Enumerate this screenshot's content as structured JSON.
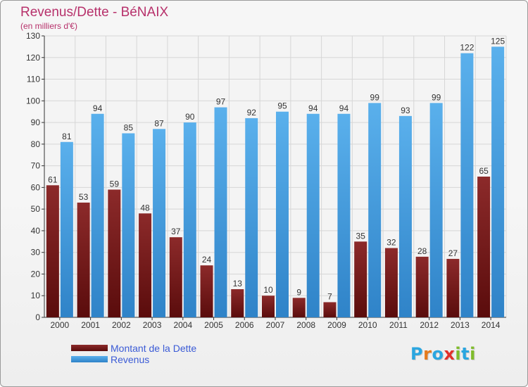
{
  "header": {
    "title": "Revenus/Dette - BéNAIX",
    "subtitle": "(en milliers d'€)"
  },
  "legend": {
    "dette_label": "Montant de la Dette",
    "revenus_label": "Revenus"
  },
  "logo": {
    "text": "Proxiti",
    "colors": [
      "#2aa6e0",
      "#e57a1c",
      "#2aa6e0",
      "#e2302a",
      "#7fbc2a",
      "#2aa6e0",
      "#7fbc2a"
    ]
  },
  "colors": {
    "dette": "#7a1a1a",
    "revenus": "#4aa3e6",
    "title": "#b7316b",
    "legend_text": "#3b5bd6",
    "grid": "#d6d6d6"
  },
  "chart_data": {
    "type": "bar",
    "title": "Revenus/Dette - BéNAIX",
    "subtitle": "(en milliers d'€)",
    "categories": [
      "2000",
      "2001",
      "2002",
      "2003",
      "2004",
      "2005",
      "2006",
      "2007",
      "2008",
      "2009",
      "2010",
      "2011",
      "2012",
      "2013",
      "2014"
    ],
    "series": [
      {
        "name": "Montant de la Dette",
        "values": [
          61,
          53,
          59,
          48,
          37,
          24,
          13,
          10,
          9,
          7,
          35,
          32,
          28,
          27,
          65
        ]
      },
      {
        "name": "Revenus",
        "values": [
          81,
          94,
          85,
          87,
          90,
          97,
          92,
          95,
          94,
          94,
          99,
          93,
          99,
          122,
          125
        ]
      }
    ],
    "ylim": [
      0,
      130
    ],
    "yticks": [
      0,
      10,
      20,
      30,
      40,
      50,
      60,
      70,
      80,
      90,
      100,
      110,
      120,
      130
    ],
    "grid": true,
    "legend_position": "bottom-left"
  }
}
